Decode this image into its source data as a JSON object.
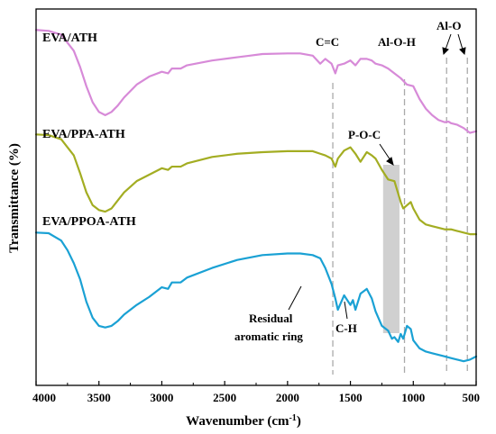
{
  "chart_data": {
    "type": "line",
    "xlabel_main": "Wavenumber (cm",
    "xlabel_sup": "-1",
    "xlabel_end": ")",
    "ylabel": "Transmittance (%)",
    "xlim": [
      4000,
      500
    ],
    "x_reversed": true,
    "y_tick_labels": false,
    "grid": false,
    "ticks": [
      4000,
      3500,
      3000,
      2500,
      2000,
      1500,
      1000,
      500
    ],
    "tick_labels": [
      "4000",
      "3500",
      "3000",
      "2500",
      "2000",
      "1500",
      "1000",
      "500"
    ],
    "y_scale_note": "transmittance in arbitrary units, curves vertically offset",
    "series": [
      {
        "name": "EVA/ATH",
        "color": "#d78ad8",
        "x": [
          4000,
          3900,
          3800,
          3700,
          3650,
          3600,
          3550,
          3500,
          3450,
          3400,
          3350,
          3300,
          3200,
          3100,
          3000,
          2950,
          2920,
          2850,
          2800,
          2600,
          2400,
          2300,
          2200,
          2000,
          1900,
          1800,
          1740,
          1700,
          1650,
          1620,
          1600,
          1550,
          1500,
          1460,
          1420,
          1370,
          1330,
          1300,
          1250,
          1200,
          1150,
          1100,
          1050,
          1000,
          950,
          900,
          850,
          800,
          750,
          720,
          700,
          650,
          600,
          550,
          500
        ],
        "y": [
          6.65,
          6.62,
          6.5,
          6.0,
          5.5,
          4.9,
          4.4,
          4.1,
          4.0,
          4.1,
          4.3,
          4.55,
          4.95,
          5.2,
          5.35,
          5.3,
          5.45,
          5.45,
          5.55,
          5.7,
          5.8,
          5.85,
          5.9,
          5.92,
          5.92,
          5.85,
          5.6,
          5.75,
          5.6,
          5.3,
          5.55,
          5.6,
          5.7,
          5.55,
          5.75,
          5.75,
          5.7,
          5.6,
          5.55,
          5.45,
          5.3,
          5.15,
          4.95,
          4.9,
          4.5,
          4.2,
          4.0,
          3.85,
          3.78,
          3.8,
          3.75,
          3.7,
          3.6,
          3.45,
          3.5
        ]
      },
      {
        "name": "EVA/PPA-ATH",
        "color": "#a3ad22",
        "x": [
          4000,
          3900,
          3800,
          3700,
          3650,
          3600,
          3550,
          3500,
          3450,
          3400,
          3350,
          3300,
          3200,
          3100,
          3000,
          2950,
          2920,
          2850,
          2800,
          2600,
          2400,
          2200,
          2000,
          1900,
          1800,
          1740,
          1700,
          1650,
          1620,
          1600,
          1550,
          1500,
          1460,
          1420,
          1370,
          1330,
          1300,
          1250,
          1200,
          1150,
          1100,
          1080,
          1050,
          1020,
          1000,
          950,
          900,
          850,
          800,
          750,
          700,
          650,
          600,
          550,
          500
        ],
        "y": [
          3.4,
          3.38,
          3.25,
          2.75,
          2.2,
          1.6,
          1.2,
          1.05,
          1.0,
          1.1,
          1.35,
          1.6,
          1.95,
          2.15,
          2.35,
          2.3,
          2.4,
          2.4,
          2.5,
          2.7,
          2.8,
          2.85,
          2.88,
          2.88,
          2.88,
          2.8,
          2.75,
          2.65,
          2.4,
          2.65,
          2.9,
          3.0,
          2.8,
          2.55,
          2.85,
          2.75,
          2.65,
          2.3,
          2.0,
          1.95,
          1.3,
          1.1,
          1.2,
          1.3,
          1.1,
          0.75,
          0.6,
          0.55,
          0.5,
          0.45,
          0.45,
          0.4,
          0.35,
          0.3,
          0.3
        ]
      },
      {
        "name": "EVA/PPOA-ATH",
        "color": "#1aa1d4",
        "x": [
          4000,
          3900,
          3800,
          3750,
          3700,
          3650,
          3600,
          3550,
          3500,
          3450,
          3400,
          3350,
          3300,
          3200,
          3100,
          3000,
          2950,
          2920,
          2850,
          2800,
          2600,
          2400,
          2200,
          2000,
          1900,
          1800,
          1740,
          1700,
          1650,
          1620,
          1600,
          1550,
          1500,
          1480,
          1460,
          1420,
          1370,
          1330,
          1300,
          1250,
          1200,
          1170,
          1150,
          1120,
          1100,
          1080,
          1050,
          1020,
          1000,
          950,
          900,
          850,
          800,
          750,
          700,
          650,
          600,
          550,
          500
        ],
        "y": [
          0.35,
          0.33,
          0.1,
          -0.2,
          -0.6,
          -1.1,
          -1.8,
          -2.3,
          -2.55,
          -2.6,
          -2.55,
          -2.4,
          -2.2,
          -1.9,
          -1.65,
          -1.35,
          -1.4,
          -1.2,
          -1.2,
          -1.05,
          -0.75,
          -0.5,
          -0.35,
          -0.3,
          -0.3,
          -0.35,
          -0.45,
          -0.75,
          -1.25,
          -1.7,
          -2.05,
          -1.6,
          -1.9,
          -1.75,
          -2.05,
          -1.55,
          -1.4,
          -1.7,
          -2.1,
          -2.55,
          -2.7,
          -2.95,
          -2.9,
          -3.05,
          -2.8,
          -2.95,
          -2.55,
          -2.65,
          -3.0,
          -3.25,
          -3.35,
          -3.4,
          -3.45,
          -3.5,
          -3.55,
          -3.6,
          -3.65,
          -3.6,
          -3.5
        ]
      }
    ],
    "ylim": [
      -4.4,
      7.3
    ],
    "series_labels": [
      "EVA/ATH",
      "EVA/PPA-ATH",
      "EVA/PPOA-ATH"
    ],
    "reference_lines": [
      {
        "x": 1640,
        "color": "#aaaaaa"
      },
      {
        "x": 1070,
        "color": "#aaaaaa"
      },
      {
        "x": 735,
        "color": "#aaaaaa"
      },
      {
        "x": 570,
        "color": "#aaaaaa"
      }
    ],
    "shaded_band": {
      "x_from": 1240,
      "x_to": 1110,
      "color": "#d0d0d0"
    },
    "annotations": [
      {
        "text": "C=C"
      },
      {
        "text": "Al-O-H"
      },
      {
        "text": "Al-O"
      },
      {
        "text": "P-O-C"
      },
      {
        "text": "Residual"
      },
      {
        "text": "aromatic ring"
      },
      {
        "text": "C-H"
      }
    ]
  }
}
